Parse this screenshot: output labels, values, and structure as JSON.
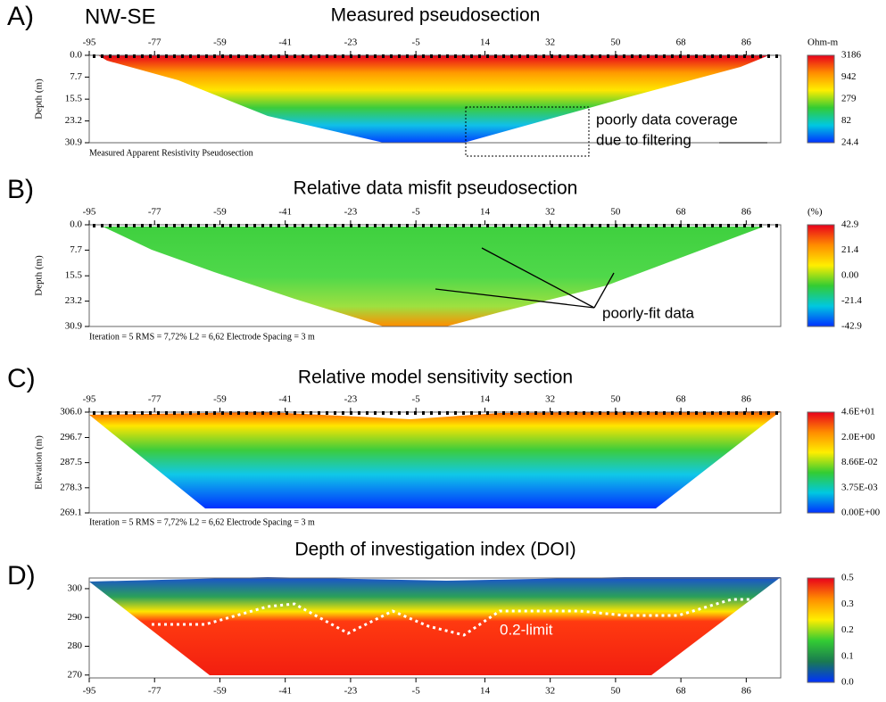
{
  "chart_data": [
    {
      "type": "pseudosection",
      "panel": "A)",
      "tag": "NW-SE",
      "title": "Measured pseudosection",
      "ylabel": "Depth (m)",
      "xlim": [
        -95,
        95.5
      ],
      "xticks": [
        -95,
        -77,
        -59,
        -41,
        -23,
        -5,
        14,
        32,
        50,
        68,
        86
      ],
      "ylim": [
        0,
        30.9
      ],
      "yinvert": true,
      "yticks": [
        {
          "value": 0,
          "label": "0.0"
        },
        7.7,
        15.5,
        23.2,
        30.9
      ],
      "colorbar": {
        "unit": "Ohm-m",
        "ticks": [
          3186,
          942,
          279,
          82,
          24.4
        ],
        "colors": [
          "#e8001c",
          "#ff8c00",
          "#ffee00",
          "#33cc33",
          "#00c8e0",
          "#0030ff"
        ]
      },
      "footer": "Measured Apparent Resistivity Pseudosection",
      "annotations": [
        "poorly data coverage",
        "due to filtering"
      ]
    },
    {
      "type": "pseudosection",
      "panel": "B)",
      "title": "Relative data misfit pseudosection",
      "ylabel": "Depth (m)",
      "xlim": [
        -95,
        95.5
      ],
      "xticks": [
        -95,
        -77,
        -59,
        -41,
        -23,
        -5,
        14,
        32,
        50,
        68,
        86
      ],
      "ylim": [
        0,
        30.9
      ],
      "yinvert": true,
      "yticks": [
        {
          "value": 0,
          "label": "0.0"
        },
        7.7,
        15.5,
        23.2,
        30.9
      ],
      "colorbar": {
        "unit": "(%)",
        "ticks": [
          42.9,
          21.4,
          {
            "value": 0,
            "label": "0.00"
          },
          -21.4,
          -42.9
        ],
        "colors": [
          "#e8001c",
          "#ff8c00",
          "#ffee00",
          "#33cc33",
          "#00c8e0",
          "#0030ff"
        ]
      },
      "footer": "Iteration = 5   RMS = 7,72%   L2 = 6,62   Electrode Spacing = 3 m",
      "annotations": [
        "poorly-fit data"
      ]
    },
    {
      "type": "pseudosection",
      "panel": "C)",
      "title": "Relative model sensitivity section",
      "ylabel": "Elevation (m)",
      "xlim": [
        -95,
        95.5
      ],
      "xticks": [
        -95,
        -77,
        -59,
        -41,
        -23,
        -5,
        14,
        32,
        50,
        68,
        86
      ],
      "ylim": [
        269.1,
        306
      ],
      "yticks": [
        {
          "value": 306,
          "label": "306.0"
        },
        296.7,
        287.5,
        278.3,
        269.1
      ],
      "colorbar": {
        "ticks": [
          {
            "value": 46,
            "label": "4.6E+01"
          },
          {
            "value": 2,
            "label": "2.0E+00"
          },
          {
            "value": 0.0866,
            "label": "8.66E-02"
          },
          {
            "value": 0.00375,
            "label": "3.75E-03"
          },
          {
            "value": 0,
            "label": "0.00E+00"
          }
        ],
        "colors": [
          "#e8001c",
          "#ff8c00",
          "#ffee00",
          "#33cc33",
          "#00c8e0",
          "#0030ff"
        ]
      },
      "footer": "Iteration = 5   RMS = 7,72%   L2 = 6,62   Electrode Spacing = 3 m",
      "annotations": []
    },
    {
      "type": "pseudosection",
      "panel": "D)",
      "title": "Depth of investigation index (DOI)",
      "xlim": [
        -95,
        95.5
      ],
      "xticks": [
        -95,
        -77,
        -59,
        -41,
        -23,
        -5,
        14,
        32,
        50,
        68,
        86
      ],
      "ylim": [
        269,
        303.7
      ],
      "yticks": [
        300,
        290,
        280,
        270
      ],
      "colorbar": {
        "ticks": [
          0.5,
          0.3,
          0.2,
          0.1,
          {
            "value": 0,
            "label": "0.0"
          }
        ],
        "colors": [
          "#e8001c",
          "#ff8c00",
          "#ffee00",
          "#33cc33",
          "#1a7a50",
          "#0030ff"
        ]
      },
      "annotations": [
        "0.2-limit"
      ]
    }
  ]
}
